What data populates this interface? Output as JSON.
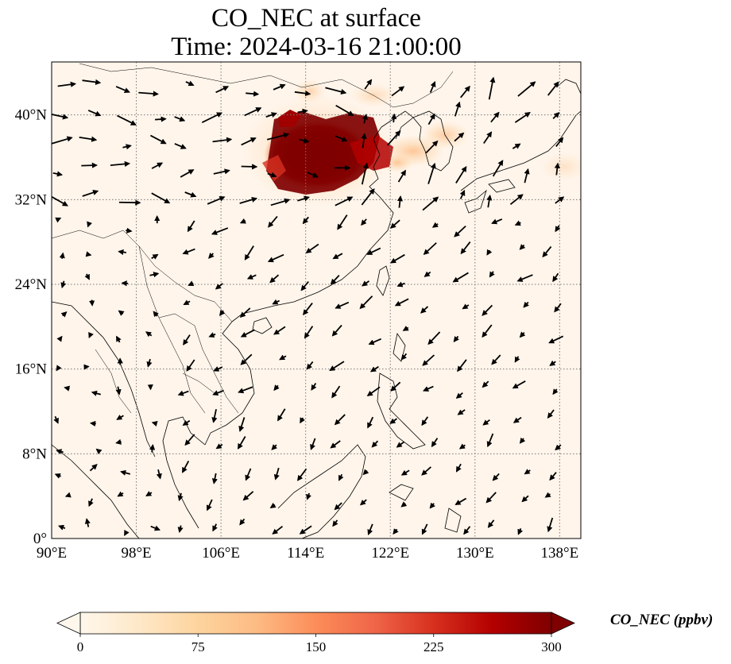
{
  "title": {
    "line1": "CO_NEC at surface",
    "line2": "Time: 2024-03-16 21:00:00"
  },
  "map": {
    "lon_range": [
      90,
      140
    ],
    "lat_range": [
      0,
      45
    ],
    "lon_ticks": [
      90,
      98,
      106,
      114,
      122,
      130,
      138
    ],
    "lon_tick_labels": [
      "90°E",
      "98°E",
      "106°E",
      "114°E",
      "122°E",
      "130°E",
      "138°E"
    ],
    "lat_ticks": [
      0,
      8,
      16,
      24,
      32,
      40
    ],
    "lat_tick_labels": [
      "0°",
      "8°N",
      "16°N",
      "24°N",
      "32°N",
      "40°N"
    ],
    "gridlines": "dotted",
    "background_color": "#fff5eb",
    "plume_color": "#7f0000",
    "plume_region": "North China Plain, ~111–120°E, 33–40°N"
  },
  "colorbar": {
    "label": "CO_NEC (ppbv)",
    "min": 0,
    "max": 300,
    "ticks": [
      0,
      75,
      150,
      225,
      300
    ],
    "tick_labels": [
      "0",
      "75",
      "150",
      "225",
      "300"
    ],
    "colormap": "OrRd",
    "colors": [
      "#fff7ec",
      "#fee8c8",
      "#fdd49e",
      "#fdbb84",
      "#fc8d59",
      "#ef6548",
      "#d7301f",
      "#b30000",
      "#7f0000"
    ],
    "extend": "both"
  }
}
